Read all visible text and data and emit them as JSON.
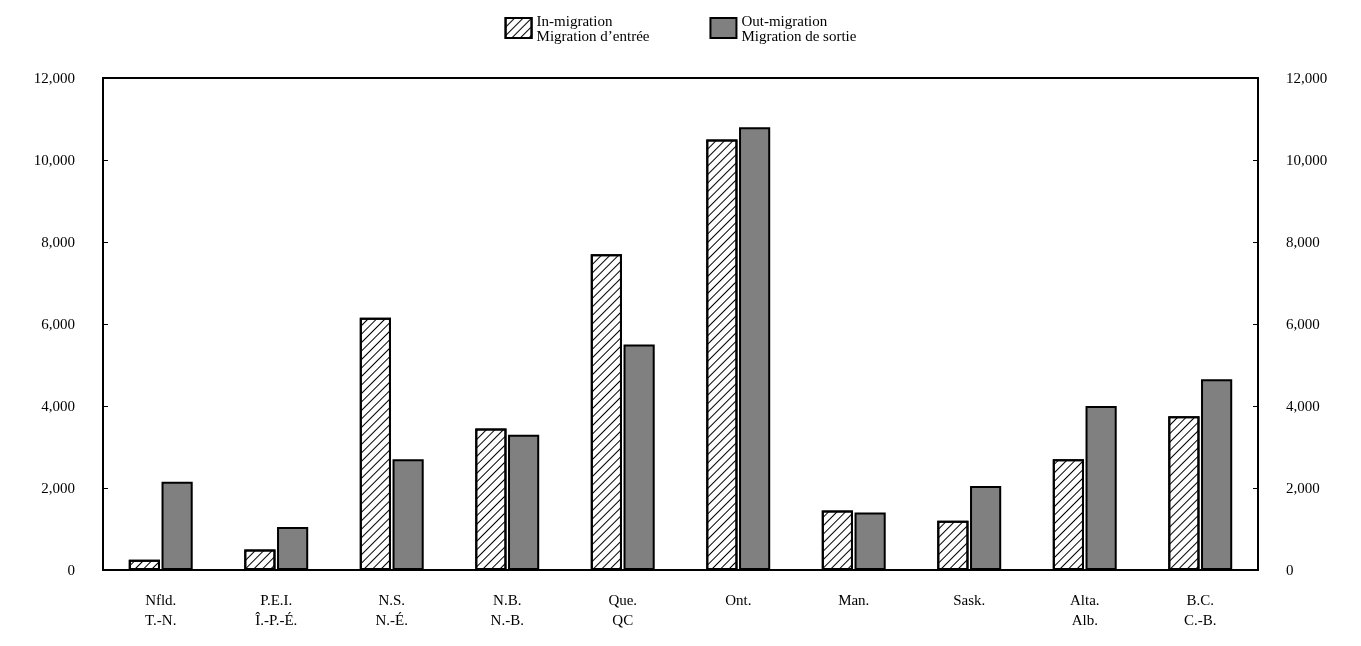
{
  "chart_data": {
    "type": "bar",
    "categories": [
      "Nfld.\nT.-N.",
      "P.E.I.\nÎ.-P.-É.",
      "N.S.\nN.-É.",
      "N.B.\nN.-B.",
      "Que.\nQC",
      "Ont.",
      "Man.",
      "Sask.",
      "Alta.\nAlb.",
      "B.C.\nC.-B."
    ],
    "series": [
      {
        "name": "In-migration\nMigration d’entrée",
        "color": "#ffffff",
        "values": [
          250,
          500,
          6150,
          3450,
          7700,
          10500,
          1450,
          1200,
          2700,
          3750
        ]
      },
      {
        "name": "Out-migration\nMigration de sortie",
        "color": "#808080",
        "values": [
          2150,
          1050,
          2700,
          3300,
          5500,
          10800,
          1400,
          2050,
          4000,
          4650
        ]
      }
    ],
    "ylim": [
      0,
      12000
    ],
    "yticks": [
      0,
      {
        "value": 2000,
        "label": "2,000"
      },
      {
        "value": 4000,
        "label": "4,000"
      },
      {
        "value": 6000,
        "label": "6,000"
      },
      {
        "value": 8000,
        "label": "8,000"
      },
      {
        "value": 10000,
        "label": "10,000"
      },
      {
        "value": 12000,
        "label": "12,000"
      }
    ],
    "y2lim": [
      0,
      12000
    ],
    "y2ticks": [
      0,
      {
        "value": 2000,
        "label": "2,000"
      },
      {
        "value": 4000,
        "label": "4,000"
      },
      {
        "value": 6000,
        "label": "6,000"
      },
      {
        "value": 8000,
        "label": "8,000"
      },
      {
        "value": 10000,
        "label": "10,000"
      },
      {
        "value": 12000,
        "label": "12,000"
      }
    ],
    "grid": false,
    "legend": "top"
  }
}
